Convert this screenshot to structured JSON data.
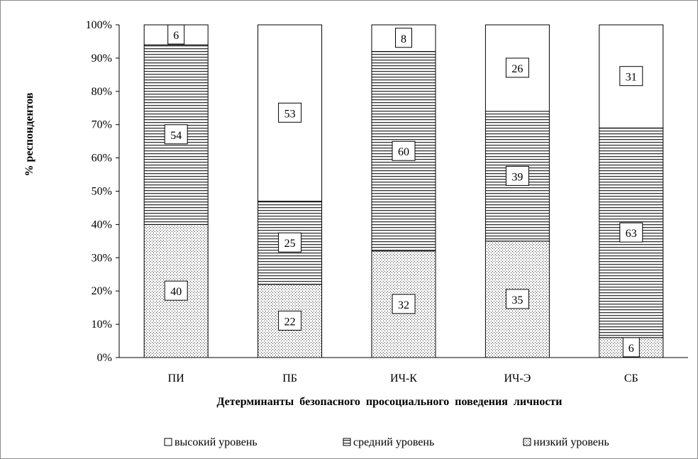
{
  "chart_data": {
    "type": "bar",
    "stacked": "percent",
    "categories": [
      "ПИ",
      "ПБ",
      "ИЧ-К",
      "ИЧ-Э",
      "СБ"
    ],
    "series": [
      {
        "name": "низкий уровень",
        "values": [
          40,
          22,
          32,
          35,
          6
        ],
        "pattern": "dots"
      },
      {
        "name": "средний уровень",
        "values": [
          54,
          25,
          60,
          39,
          63
        ],
        "pattern": "horizontal-lines"
      },
      {
        "name": "высокий уровень",
        "values": [
          6,
          53,
          8,
          26,
          31
        ],
        "pattern": "none"
      }
    ],
    "xlabel": "Детерминанты  безопасного  просоциального  поведения  личности",
    "ylabel": "% респондентов",
    "ylim": [
      0,
      100
    ],
    "yticks": [
      "0%",
      "10%",
      "20%",
      "30%",
      "40%",
      "50%",
      "60%",
      "70%",
      "80%",
      "90%",
      "100%"
    ],
    "legend_position": "bottom",
    "legend": [
      "высокий уровень",
      "средний уровень",
      "низкий уровень"
    ],
    "grid": false
  }
}
